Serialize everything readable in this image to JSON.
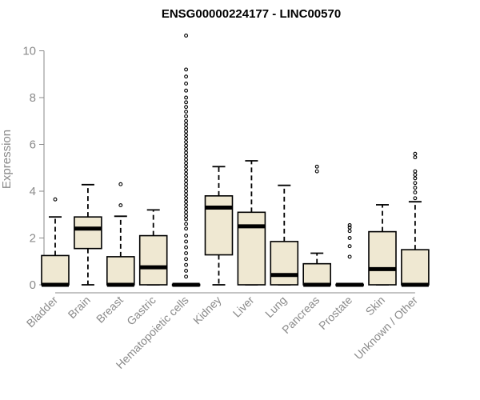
{
  "chart_data": {
    "type": "box",
    "title": "ENSG00000224177 - LINC00570",
    "ylabel": "Expression",
    "xlabel": "",
    "ylim": [
      0,
      10.5
    ],
    "yticks": [
      0,
      2,
      4,
      6,
      8,
      10
    ],
    "box_fill": "#efe8d2",
    "categories": [
      "Bladder",
      "Brain",
      "Breast",
      "Gastric",
      "Hematopoietic cells",
      "Kidney",
      "Liver",
      "Lung",
      "Pancreas",
      "Prostate",
      "Skin",
      "Unknown / Other"
    ],
    "boxes": [
      {
        "whisker_low": 0,
        "q1": 0,
        "median": 0,
        "q3": 1.25,
        "whisker_high": 2.9,
        "outliers": [
          3.65
        ]
      },
      {
        "whisker_low": 0,
        "q1": 1.55,
        "median": 2.4,
        "q3": 2.9,
        "whisker_high": 4.28,
        "outliers": []
      },
      {
        "whisker_low": 0,
        "q1": 0,
        "median": 0,
        "q3": 1.2,
        "whisker_high": 2.93,
        "outliers": [
          3.4,
          4.3
        ]
      },
      {
        "whisker_low": 0,
        "q1": 0,
        "median": 0.75,
        "q3": 2.1,
        "whisker_high": 3.2,
        "outliers": []
      },
      {
        "whisker_low": 0,
        "q1": 0,
        "median": 0,
        "q3": 0.02,
        "whisker_high": 0.05,
        "outliers": [
          0.35,
          0.6,
          0.85,
          1.1,
          1.35,
          1.6,
          1.85,
          2.1,
          2.4,
          2.6,
          2.8,
          2.95,
          3.1,
          3.25,
          3.4,
          3.55,
          3.7,
          3.85,
          4.0,
          4.15,
          4.3,
          4.45,
          4.6,
          4.75,
          4.9,
          5.05,
          5.2,
          5.35,
          5.5,
          5.65,
          5.8,
          5.95,
          6.1,
          6.25,
          6.4,
          6.55,
          6.7,
          6.85,
          7.0,
          7.2,
          7.4,
          7.6,
          7.8,
          8.0,
          8.3,
          8.6,
          8.9,
          9.2,
          10.65
        ]
      },
      {
        "whisker_low": 0,
        "q1": 1.28,
        "median": 3.3,
        "q3": 3.8,
        "whisker_high": 5.05,
        "outliers": []
      },
      {
        "whisker_low": 0,
        "q1": 0,
        "median": 2.5,
        "q3": 3.1,
        "whisker_high": 5.3,
        "outliers": []
      },
      {
        "whisker_low": 0,
        "q1": 0,
        "median": 0.42,
        "q3": 1.85,
        "whisker_high": 4.25,
        "outliers": []
      },
      {
        "whisker_low": 0,
        "q1": 0,
        "median": 0,
        "q3": 0.9,
        "whisker_high": 1.35,
        "outliers": [
          4.85,
          5.05
        ]
      },
      {
        "whisker_low": 0,
        "q1": 0,
        "median": 0,
        "q3": 0.02,
        "whisker_high": 0.05,
        "outliers": [
          1.2,
          1.65,
          2.0,
          2.3,
          2.45,
          2.55
        ]
      },
      {
        "whisker_low": 0,
        "q1": 0,
        "median": 0.67,
        "q3": 2.27,
        "whisker_high": 3.42,
        "outliers": []
      },
      {
        "whisker_low": 0,
        "q1": 0,
        "median": 0,
        "q3": 1.5,
        "whisker_high": 3.55,
        "outliers": [
          3.7,
          3.95,
          4.15,
          4.35,
          4.55,
          4.7,
          4.85,
          5.45,
          5.6
        ]
      }
    ]
  }
}
